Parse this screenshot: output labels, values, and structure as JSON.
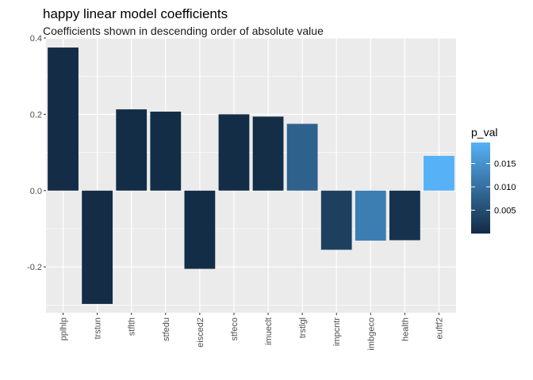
{
  "chart_data": {
    "type": "bar",
    "title": "happy linear model coefficients",
    "subtitle": "Coefficients shown in descending order of absolute value",
    "xlabel": "",
    "ylabel": "",
    "ylim": [
      -0.32,
      0.4
    ],
    "yticks": [
      -0.2,
      0.0,
      0.2,
      0.4
    ],
    "ytick_labels": [
      "-0.2",
      "0.0",
      "0.2",
      "0.4"
    ],
    "grid": true,
    "categories": [
      "pplhlp",
      "trstun",
      "stflth",
      "stfedu",
      "eisced2",
      "stfeco",
      "imueclt",
      "trstlgl",
      "impcntr",
      "imbgeco",
      "health",
      "euftf2"
    ],
    "values": [
      0.375,
      -0.297,
      0.213,
      0.207,
      -0.205,
      0.2,
      0.194,
      0.175,
      -0.155,
      -0.131,
      -0.13,
      0.091
    ],
    "p_values": [
      0.0002,
      0.0002,
      0.0003,
      0.0003,
      0.0003,
      0.0003,
      0.0004,
      0.008,
      0.003,
      0.012,
      0.001,
      0.0195
    ],
    "legend": {
      "title": "p_val",
      "position": "right",
      "breaks": [
        0.005,
        0.01,
        0.015
      ],
      "labels": [
        "0.005",
        "0.010",
        "0.015"
      ],
      "range": [
        0.0,
        0.0195
      ],
      "low_color": "#132B43",
      "high_color": "#56B1F7"
    }
  }
}
